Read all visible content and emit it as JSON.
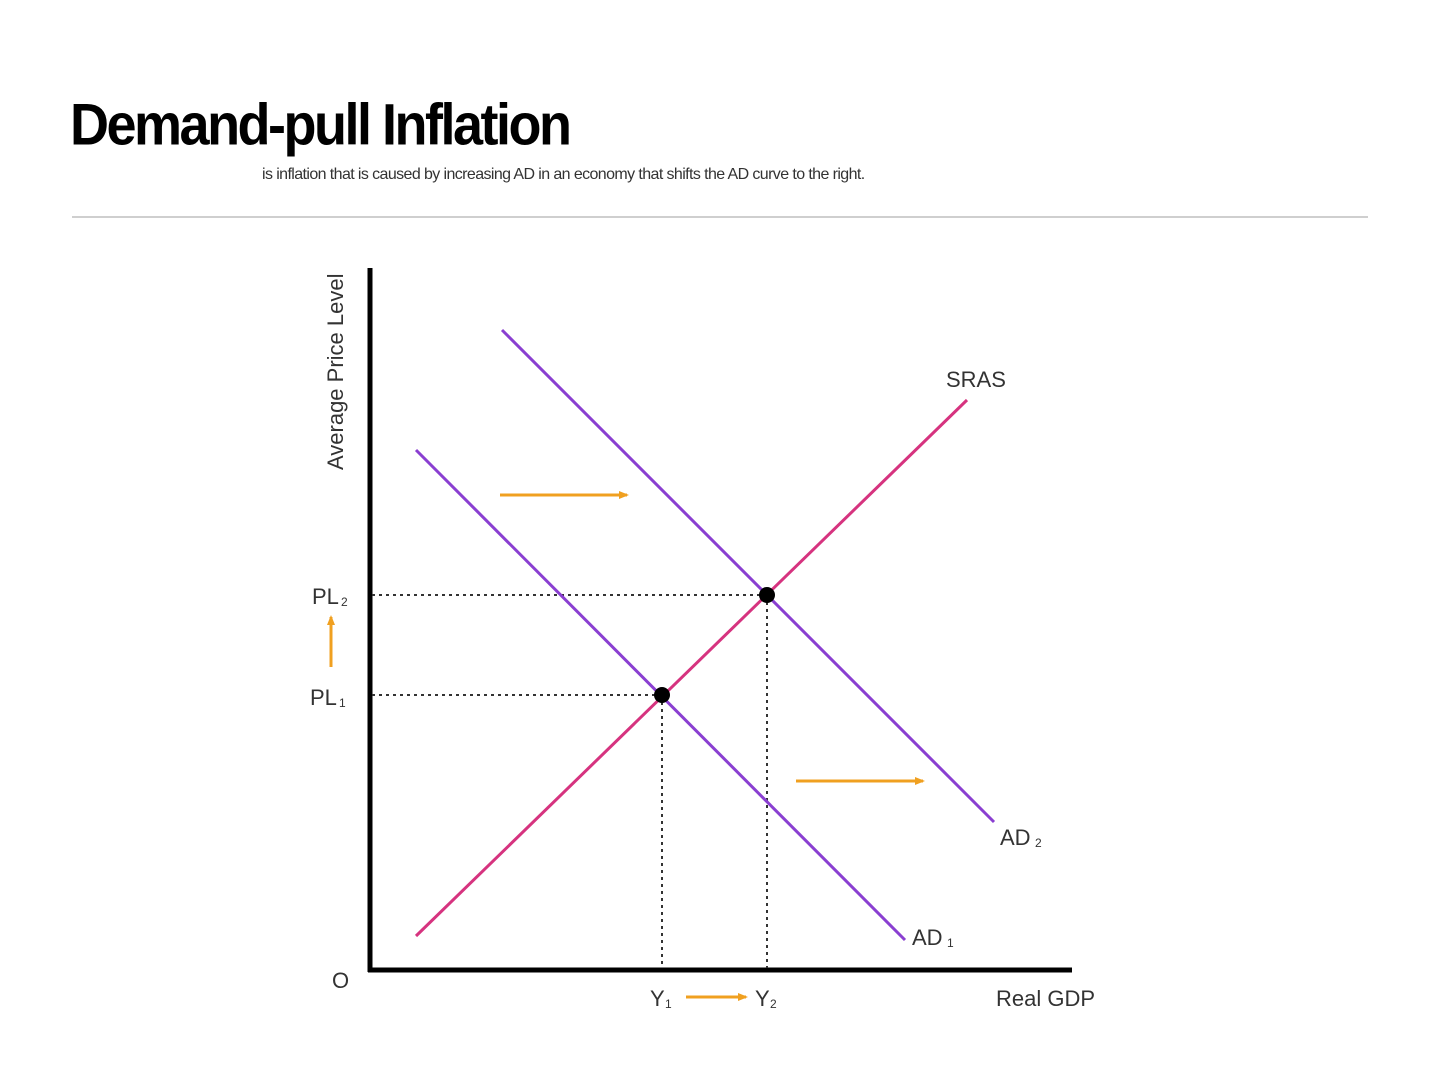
{
  "slide": {
    "title": "Demand-pull Inflation",
    "subtitle": "is inflation that is caused by increasing AD in an economy that shifts the AD curve to the right."
  },
  "diagram": {
    "y_axis_label": "Average Price Level",
    "x_axis_label": "Real GDP",
    "origin_label": "O",
    "curves": {
      "sras": "SRAS",
      "ad1": "AD",
      "ad1_sub": "1",
      "ad2": "AD",
      "ad2_sub": "2"
    },
    "price_levels": {
      "pl1": "PL",
      "pl1_sub": "1",
      "pl2": "PL",
      "pl2_sub": "2"
    },
    "outputs": {
      "y1": "Y",
      "y1_sub": "1",
      "y2": "Y",
      "y2_sub": "2"
    },
    "colors": {
      "ad": "#8a3fd1",
      "sras": "#d6337f",
      "arrow": "#f0a020",
      "axis": "#000000",
      "guide": "#333333"
    }
  }
}
